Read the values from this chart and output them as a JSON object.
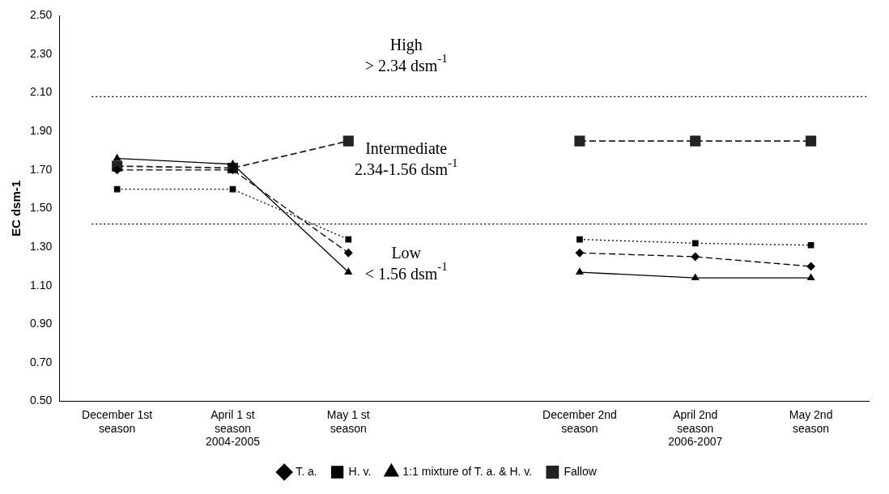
{
  "chart_data": {
    "type": "line",
    "ylabel": "EC dsm-1",
    "categories": [
      "December 1st\nseason",
      "April 1 st\nseason\n2004-2005",
      "May 1 st\nseason",
      null,
      "December 2nd\nseason",
      "April 2nd\nseason\n2006-2007",
      "May 2nd\nseason"
    ],
    "series": [
      {
        "name": "T. a.",
        "color": "#000000",
        "marker": "diamond",
        "line_style": "dashed",
        "values": [
          1.7,
          1.7,
          1.27,
          null,
          1.27,
          1.25,
          1.2
        ]
      },
      {
        "name": "H. v.",
        "color": "#000000",
        "marker": "square",
        "line_style": "dotted",
        "values": [
          1.6,
          1.6,
          1.34,
          null,
          1.34,
          1.32,
          1.31
        ]
      },
      {
        "name": "1:1 mixture of T. a. & H. v.",
        "color": "#000000",
        "marker": "triangle",
        "line_style": "solid",
        "values": [
          1.76,
          1.73,
          1.17,
          null,
          1.17,
          1.14,
          1.14
        ]
      },
      {
        "name": "Fallow",
        "color": "#222222",
        "marker": "square",
        "line_style": "dashed",
        "values": [
          1.72,
          1.71,
          1.85,
          null,
          1.85,
          1.85,
          1.85
        ]
      }
    ],
    "ylim": [
      0.5,
      2.5
    ],
    "yticks": [
      {
        "value": 0.5,
        "label": "0.50"
      },
      {
        "value": 0.7,
        "label": "0.70"
      },
      {
        "value": 0.9,
        "label": "0.90"
      },
      {
        "value": 1.1,
        "label": "1.10"
      },
      {
        "value": 1.3,
        "label": "1.30"
      },
      {
        "value": 1.5,
        "label": "1.50"
      },
      {
        "value": 1.7,
        "label": "1.70"
      },
      {
        "value": 1.9,
        "label": "1.90"
      },
      {
        "value": 2.1,
        "label": "2.10"
      },
      {
        "value": 2.3,
        "label": "2.30"
      },
      {
        "value": 2.5,
        "label": "2.50"
      }
    ],
    "ref_lines": [
      {
        "axis": "y",
        "value": 2.08,
        "line_style": "dotted",
        "color": "#000000"
      },
      {
        "axis": "y",
        "value": 1.42,
        "line_style": "dotted",
        "color": "#000000"
      }
    ],
    "annotations": [
      "High\n> 2.34 dsm$^{-1}$",
      "Intermediate\n2.34-1.56 dsm$^{-1}$",
      "Low\n< 1.56 dsm$^{-1}$"
    ],
    "grid": false,
    "legend": "bottom"
  }
}
